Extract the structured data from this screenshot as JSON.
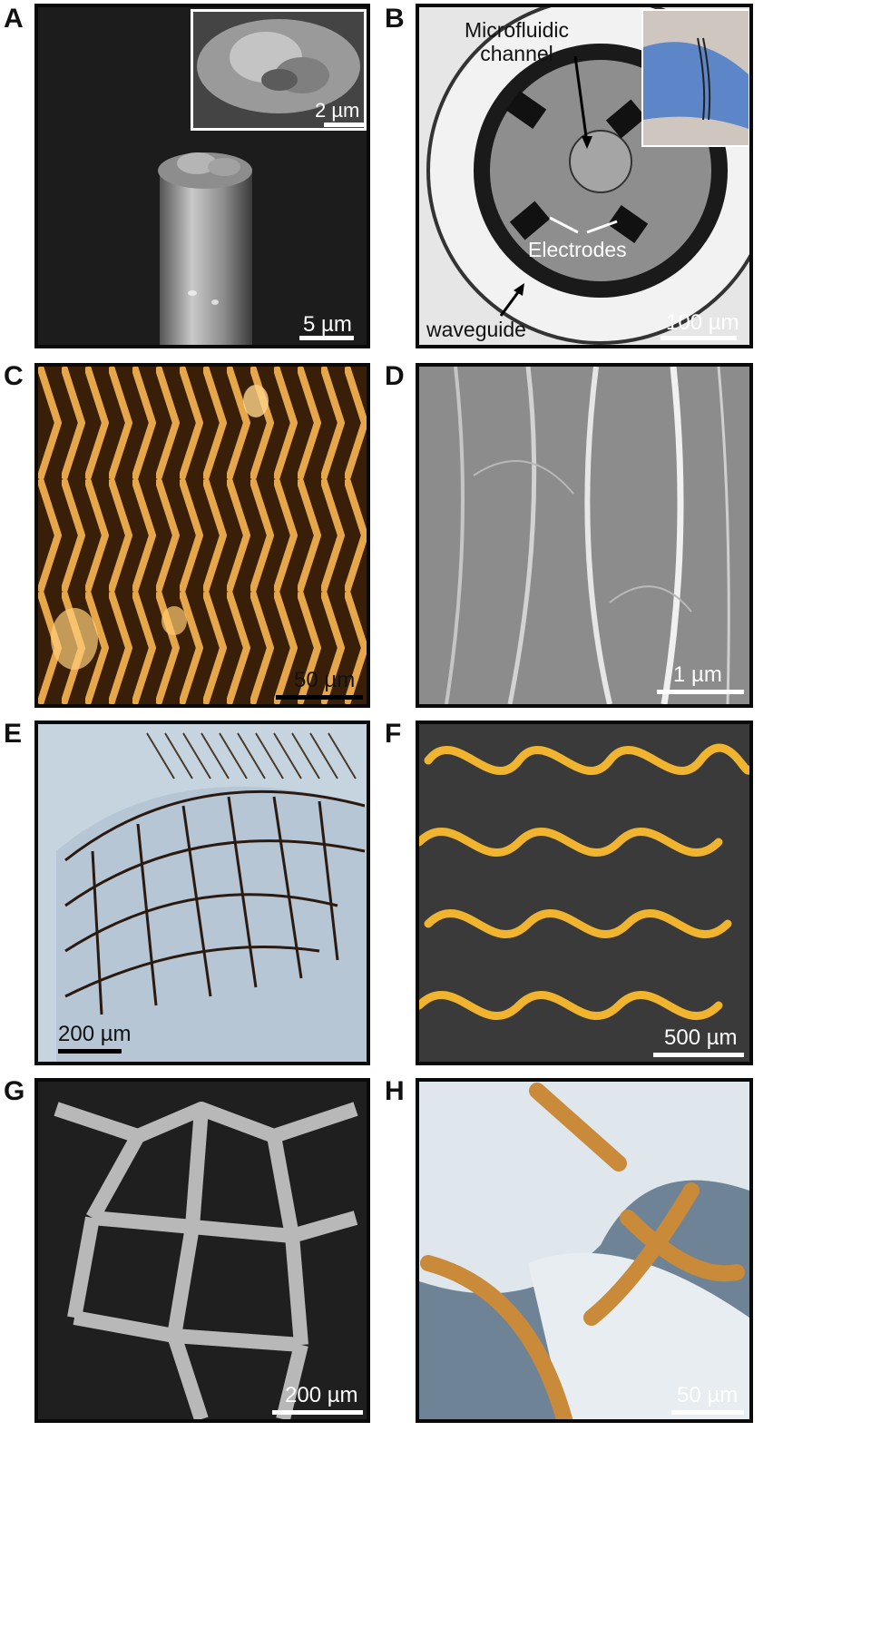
{
  "panels": {
    "A": {
      "letter": "A",
      "scale": "5 µm",
      "inset_scale": "2 µm"
    },
    "B": {
      "letter": "B",
      "channel": "Microfluidic\nchannel",
      "electrodes": "Electrodes",
      "waveguide": "waveguide",
      "scale": "100 µm"
    },
    "C": {
      "letter": "C",
      "scale": "50 µm"
    },
    "D": {
      "letter": "D",
      "scale": "1 µm"
    },
    "E": {
      "letter": "E",
      "scale": "200 µm"
    },
    "F": {
      "letter": "F",
      "scale": "500 µm"
    },
    "G": {
      "letter": "G",
      "scale": "200 µm"
    },
    "H": {
      "letter": "H",
      "scale": "50 µm"
    }
  },
  "colors": {
    "frame": "#0a0a0a",
    "sem_background": "#1a1a1a",
    "gold_trace": "#d99a2b",
    "tissue_blue": "#9fb3c6",
    "fiber_orange": "#c98a3a"
  }
}
